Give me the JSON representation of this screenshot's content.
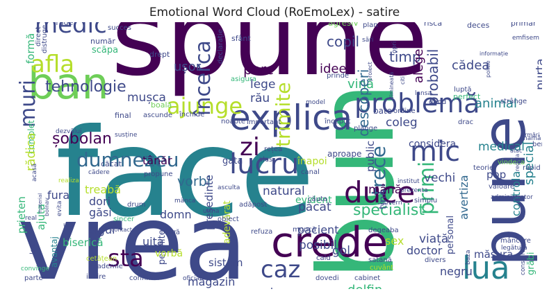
{
  "title": "Emotional Word Cloud (RoEmoLex) - satire",
  "palette": [
    "#440154",
    "#482878",
    "#3e4989",
    "#31688e",
    "#26828e",
    "#1f9e89",
    "#35b779",
    "#6ece58",
    "#b5de2b",
    "#fde725"
  ],
  "words": [
    {
      "text": "spune",
      "color": "#440154"
    },
    {
      "text": "face",
      "color": "#26828e"
    },
    {
      "text": "vrea",
      "color": "#3e4989"
    },
    {
      "text": "bun",
      "color": "#35b779"
    },
    {
      "text": "ban",
      "color": "#6ece58"
    },
    {
      "text": "explica",
      "color": "#3e4989"
    },
    {
      "text": "pune",
      "color": "#3e4989"
    },
    {
      "text": "crede",
      "color": "#440154"
    },
    {
      "text": "lucru",
      "color": "#3e4989"
    },
    {
      "text": "duce",
      "color": "#440154"
    },
    {
      "text": "lua",
      "color": "#26828e"
    },
    {
      "text": "medic",
      "color": "#3e4989"
    },
    {
      "text": "afla",
      "color": "#b5de2b"
    },
    {
      "text": "problemă",
      "color": "#3e4989"
    },
    {
      "text": "ajunge",
      "color": "#b5de2b"
    },
    {
      "text": "mic",
      "color": "#3e4989"
    },
    {
      "text": "dumnezeu",
      "color": "#31688e"
    },
    {
      "text": "zi",
      "color": "#440154"
    },
    {
      "text": "caz",
      "color": "#3e4989"
    },
    {
      "text": "sta",
      "color": "#440154"
    },
    {
      "text": "muri",
      "color": "#3e4989"
    },
    {
      "text": "încerca",
      "color": "#3e4989"
    },
    {
      "text": "trimite",
      "color": "#b5de2b"
    },
    {
      "text": "trece",
      "color": "#31688e"
    },
    {
      "text": "primi",
      "color": "#35b779"
    },
    {
      "text": "tehnologie",
      "color": "#3e4989"
    },
    {
      "text": "specialist",
      "color": "#35b779"
    },
    {
      "text": "șobolan",
      "color": "#440154"
    },
    {
      "text": "vorbi",
      "color": "#31688e"
    },
    {
      "text": "copil",
      "color": "#3e4989"
    },
    {
      "text": "timp",
      "color": "#3e4989"
    },
    {
      "text": "alege",
      "color": "#440154"
    },
    {
      "text": "probabil",
      "color": "#3e4989"
    },
    {
      "text": "porc",
      "color": "#440154"
    },
    {
      "text": "ușor",
      "color": "#3e4989"
    },
    {
      "text": "lege",
      "color": "#3e4989"
    },
    {
      "text": "idee",
      "color": "#440154"
    },
    {
      "text": "vină",
      "color": "#35b779"
    },
    {
      "text": "cădea",
      "color": "#3e4989"
    },
    {
      "text": "rău",
      "color": "#3e4989"
    },
    {
      "text": "descoperi",
      "color": "#31688e"
    },
    {
      "text": "coleg",
      "color": "#3e4989"
    },
    {
      "text": "animal",
      "color": "#26828e"
    },
    {
      "text": "purta",
      "color": "#3e4989"
    },
    {
      "text": "special",
      "color": "#26828e"
    },
    {
      "text": "medical",
      "color": "#26828e"
    },
    {
      "text": "vechi",
      "color": "#3e4989"
    },
    {
      "text": "mușca",
      "color": "#3e4989"
    },
    {
      "text": "tânăr",
      "color": "#440154"
    },
    {
      "text": "natural",
      "color": "#3e4989"
    },
    {
      "text": "public",
      "color": "#3e4989"
    },
    {
      "text": "considera",
      "color": "#3e4989"
    },
    {
      "text": "fura",
      "color": "#3e4989"
    },
    {
      "text": "treabă",
      "color": "#b5de2b"
    },
    {
      "text": "dori",
      "color": "#3e4989"
    },
    {
      "text": "găsi",
      "color": "#3e4989"
    },
    {
      "text": "domn",
      "color": "#3e4989"
    },
    {
      "text": "mână",
      "color": "#440154"
    },
    {
      "text": "păcat",
      "color": "#3e4989"
    },
    {
      "text": "pacient",
      "color": "#3e4989"
    },
    {
      "text": "adevărat",
      "color": "#b5de2b"
    },
    {
      "text": "evident",
      "color": "#35b779"
    },
    {
      "text": "tine",
      "color": "#3e4989"
    },
    {
      "text": "pop",
      "color": "#3e4989"
    },
    {
      "text": "controla",
      "color": "#26828e"
    },
    {
      "text": "avertiza",
      "color": "#31688e"
    },
    {
      "text": "sigur",
      "color": "#3e4989"
    },
    {
      "text": "prieten",
      "color": "#35b779"
    },
    {
      "text": "ajuta",
      "color": "#35b779"
    },
    {
      "text": "biserică",
      "color": "#35b779"
    },
    {
      "text": "președinte",
      "color": "#3e4989"
    },
    {
      "text": "gol",
      "color": "#3e4989"
    },
    {
      "text": "viață",
      "color": "#3e4989"
    },
    {
      "text": "sex",
      "color": "#b5de2b"
    },
    {
      "text": "doctor",
      "color": "#3e4989"
    },
    {
      "text": "măsura",
      "color": "#3e4989"
    },
    {
      "text": "posibil",
      "color": "#3e4989"
    },
    {
      "text": "uita",
      "color": "#3e4989"
    },
    {
      "text": "sistem",
      "color": "#3e4989"
    },
    {
      "text": "permite",
      "color": "#3e4989"
    },
    {
      "text": "vorbă",
      "color": "#b5de2b"
    },
    {
      "text": "magazin",
      "color": "#3e4989"
    },
    {
      "text": "clar",
      "color": "#3e4989"
    },
    {
      "text": "delfin",
      "color": "#35b779"
    },
    {
      "text": "negru",
      "color": "#3e4989"
    },
    {
      "text": "personal",
      "color": "#3e4989"
    },
    {
      "text": "grăbi",
      "color": "#35b779"
    },
    {
      "text": "cercetare",
      "color": "#35b779"
    },
    {
      "text": "așteapta",
      "color": "#35b779"
    },
    {
      "text": "secret",
      "color": "#3e4989"
    },
    {
      "text": "formă",
      "color": "#35b779"
    },
    {
      "text": "complet",
      "color": "#35b779"
    },
    {
      "text": "rădica",
      "color": "#b5de2b"
    },
    {
      "text": "avantaj",
      "color": "#26828e"
    },
    {
      "text": "scăpa",
      "color": "#35b779"
    },
    {
      "text": "număr",
      "color": "#3e4989"
    },
    {
      "text": "agresiv",
      "color": "#6ece58"
    },
    {
      "text": "sfânt",
      "color": "#3e4989"
    },
    {
      "text": "declarație",
      "color": "#3e4989"
    },
    {
      "text": "trage",
      "color": "#3e4989"
    },
    {
      "text": "succes",
      "color": "#3e4989"
    },
    {
      "text": "plan",
      "color": "#3e4989"
    },
    {
      "text": "risca",
      "color": "#3e4989"
    },
    {
      "text": "deces",
      "color": "#3e4989"
    },
    {
      "text": "primar",
      "color": "#3e4989"
    },
    {
      "text": "emfisem",
      "color": "#3e4989"
    },
    {
      "text": "direct",
      "color": "#3e4989"
    },
    {
      "text": "distruge",
      "color": "#3e4989"
    },
    {
      "text": "drept",
      "color": "#3e4989"
    },
    {
      "text": "asigura",
      "color": "#35b779"
    },
    {
      "text": "informație",
      "color": "#3e4989"
    },
    {
      "text": "politie",
      "color": "#3e4989"
    },
    {
      "text": "perfect",
      "color": "#35b779"
    },
    {
      "text": "strânge",
      "color": "#3e4989"
    },
    {
      "text": "luptă",
      "color": "#3e4989"
    },
    {
      "text": "gând",
      "color": "#3e4989"
    },
    {
      "text": "lansa",
      "color": "#3e4989"
    },
    {
      "text": "citi",
      "color": "#3e4989"
    },
    {
      "text": "model",
      "color": "#3e4989"
    },
    {
      "text": "bate",
      "color": "#3e4989"
    },
    {
      "text": "ordine",
      "color": "#3e4989"
    },
    {
      "text": "boală",
      "color": "#6ece58"
    },
    {
      "text": "final",
      "color": "#3e4989"
    },
    {
      "text": "ascunde",
      "color": "#3e4989"
    },
    {
      "text": "închide",
      "color": "#3e4989"
    },
    {
      "text": "noapte",
      "color": "#3e4989"
    },
    {
      "text": "important",
      "color": "#3e4989"
    },
    {
      "text": "început",
      "color": "#3e4989"
    },
    {
      "text": "drac",
      "color": "#3e4989"
    },
    {
      "text": "plânge",
      "color": "#3e4989"
    },
    {
      "text": "aproape",
      "color": "#3e4989"
    },
    {
      "text": "înapoi",
      "color": "#b5de2b"
    },
    {
      "text": "rețea",
      "color": "#3e4989"
    },
    {
      "text": "gata",
      "color": "#3e4989"
    },
    {
      "text": "ales",
      "color": "#3e4989"
    },
    {
      "text": "cădere",
      "color": "#3e4989"
    },
    {
      "text": "căcat",
      "color": "#3e4989"
    },
    {
      "text": "propune",
      "color": "#3e4989"
    },
    {
      "text": "realiza",
      "color": "#b5de2b"
    },
    {
      "text": "drum",
      "color": "#3e4989"
    },
    {
      "text": "canal",
      "color": "#3e4989"
    },
    {
      "text": "mânca",
      "color": "#3e4989"
    },
    {
      "text": "sincer",
      "color": "#35b779"
    },
    {
      "text": "adăpost",
      "color": "#3e4989"
    },
    {
      "text": "rapid",
      "color": "#3e4989"
    },
    {
      "text": "teorie",
      "color": "#3e4989"
    },
    {
      "text": "valoare",
      "color": "#3e4989"
    },
    {
      "text": "vindeca",
      "color": "#6ece58"
    },
    {
      "text": "bere",
      "color": "#3e4989"
    },
    {
      "text": "mamă",
      "color": "#3e4989"
    },
    {
      "text": "administrator",
      "color": "#3e4989"
    },
    {
      "text": "institut",
      "color": "#3e4989"
    },
    {
      "text": "prezenta",
      "color": "#3e4989"
    },
    {
      "text": "guvern",
      "color": "#3e4989"
    },
    {
      "text": "căuta",
      "color": "#3e4989"
    },
    {
      "text": "obiect",
      "color": "#3e4989"
    },
    {
      "text": "urma",
      "color": "#3e4989"
    },
    {
      "text": "simplu",
      "color": "#3e4989"
    },
    {
      "text": "frică",
      "color": "#3e4989"
    },
    {
      "text": "refuza",
      "color": "#3e4989"
    },
    {
      "text": "muncă",
      "color": "#3e4989"
    },
    {
      "text": "degeaba",
      "color": "#3e4989"
    },
    {
      "text": "mâncare",
      "color": "#3e4989"
    },
    {
      "text": "legătură",
      "color": "#3e4989"
    },
    {
      "text": "cald",
      "color": "#3e4989"
    },
    {
      "text": "satană",
      "color": "#3e4989"
    },
    {
      "text": "divers",
      "color": "#3e4989"
    },
    {
      "text": "cuvânt",
      "color": "#b5de2b"
    },
    {
      "text": "cetățean",
      "color": "#b5de2b"
    },
    {
      "text": "academie",
      "color": "#3e4989"
    },
    {
      "text": "iubire",
      "color": "#3e4989"
    },
    {
      "text": "confirma",
      "color": "#3e4989"
    },
    {
      "text": "oficial",
      "color": "#3e4989"
    },
    {
      "text": "dovedi",
      "color": "#3e4989"
    },
    {
      "text": "cabinet",
      "color": "#3e4989"
    },
    {
      "text": "conspirație",
      "color": "#3e4989"
    },
    {
      "text": "convinge",
      "color": "#35b779"
    },
    {
      "text": "parte",
      "color": "#3e4989"
    },
    {
      "text": "leac",
      "color": "#3e4989"
    },
    {
      "text": "real",
      "color": "#3e4989"
    },
    {
      "text": "urs",
      "color": "#3e4989"
    },
    {
      "text": "cur",
      "color": "#3e4989"
    },
    {
      "text": "evita",
      "color": "#3e4989"
    },
    {
      "text": "asculta",
      "color": "#3e4989"
    },
    {
      "text": "material",
      "color": "#3e4989"
    },
    {
      "text": "bolnav",
      "color": "#3e4989"
    },
    {
      "text": "baza",
      "color": "#3e4989"
    },
    {
      "text": "acasă",
      "color": "#3e4989"
    },
    {
      "text": "dezvălui",
      "color": "#3e4989"
    },
    {
      "text": "susține",
      "color": "#3e4989"
    },
    {
      "text": "proiect",
      "color": "#3e4989"
    },
    {
      "text": "dimineată",
      "color": "#3e4989"
    },
    {
      "text": "opri",
      "color": "#3e4989"
    },
    {
      "text": "sări",
      "color": "#3e4989"
    },
    {
      "text": "prinde",
      "color": "#3e4989"
    },
    {
      "text": "urmări",
      "color": "#3e4989"
    },
    {
      "text": "regula",
      "color": "#3e4989"
    },
    {
      "text": "atac",
      "color": "#3e4989"
    },
    {
      "text": "contact",
      "color": "#3e4989"
    }
  ]
}
